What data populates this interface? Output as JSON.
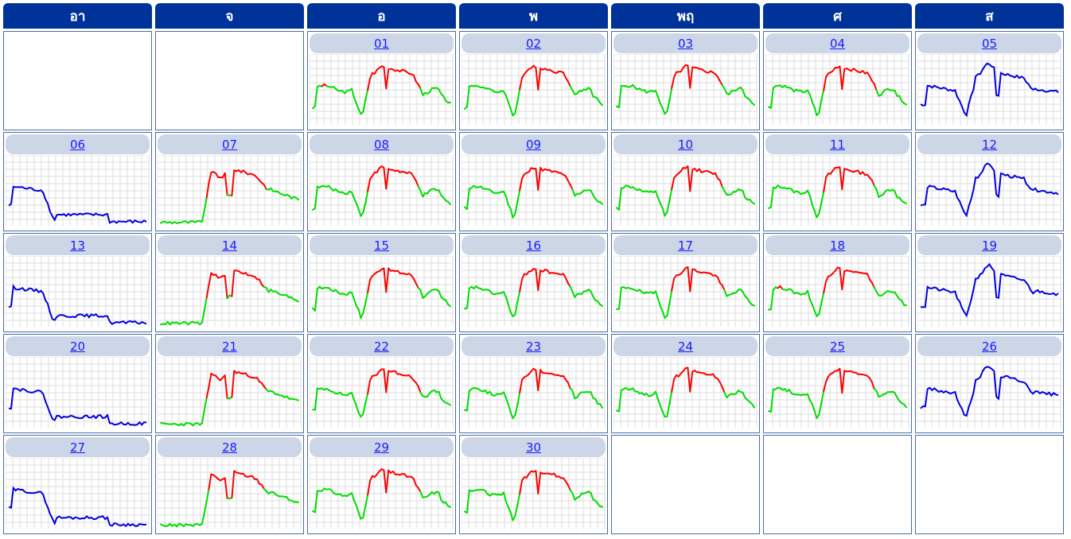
{
  "colors": {
    "header_bg": "#003399",
    "header_text": "#ffffff",
    "cell_border": "#4a6da7",
    "day_label_bg": "#ccd6e6",
    "day_link": "#1a1aff",
    "grid_line": "#dddddd",
    "weekday_high": "#ff0000",
    "weekday_normal": "#00dd00",
    "weekend_line": "#0000dd"
  },
  "weekdays": [
    "อา",
    "จ",
    "อ",
    "พ",
    "พฤ",
    "ศ",
    "ส"
  ],
  "days": [
    {
      "label": "01",
      "col": 2,
      "row": 0,
      "pattern": "weekday"
    },
    {
      "label": "02",
      "col": 3,
      "row": 0,
      "pattern": "weekday"
    },
    {
      "label": "03",
      "col": 4,
      "row": 0,
      "pattern": "weekday"
    },
    {
      "label": "04",
      "col": 5,
      "row": 0,
      "pattern": "weekday"
    },
    {
      "label": "05",
      "col": 6,
      "row": 0,
      "pattern": "saturday"
    },
    {
      "label": "06",
      "col": 0,
      "row": 1,
      "pattern": "sunday"
    },
    {
      "label": "07",
      "col": 1,
      "row": 1,
      "pattern": "monday"
    },
    {
      "label": "08",
      "col": 2,
      "row": 1,
      "pattern": "weekday"
    },
    {
      "label": "09",
      "col": 3,
      "row": 1,
      "pattern": "weekday"
    },
    {
      "label": "10",
      "col": 4,
      "row": 1,
      "pattern": "weekday"
    },
    {
      "label": "11",
      "col": 5,
      "row": 1,
      "pattern": "weekday"
    },
    {
      "label": "12",
      "col": 6,
      "row": 1,
      "pattern": "saturday"
    },
    {
      "label": "13",
      "col": 0,
      "row": 2,
      "pattern": "sunday"
    },
    {
      "label": "14",
      "col": 1,
      "row": 2,
      "pattern": "monday"
    },
    {
      "label": "15",
      "col": 2,
      "row": 2,
      "pattern": "weekday"
    },
    {
      "label": "16",
      "col": 3,
      "row": 2,
      "pattern": "weekday"
    },
    {
      "label": "17",
      "col": 4,
      "row": 2,
      "pattern": "weekday"
    },
    {
      "label": "18",
      "col": 5,
      "row": 2,
      "pattern": "weekday"
    },
    {
      "label": "19",
      "col": 6,
      "row": 2,
      "pattern": "saturday"
    },
    {
      "label": "20",
      "col": 0,
      "row": 3,
      "pattern": "sunday"
    },
    {
      "label": "21",
      "col": 1,
      "row": 3,
      "pattern": "monday"
    },
    {
      "label": "22",
      "col": 2,
      "row": 3,
      "pattern": "weekday"
    },
    {
      "label": "23",
      "col": 3,
      "row": 3,
      "pattern": "weekday"
    },
    {
      "label": "24",
      "col": 4,
      "row": 3,
      "pattern": "weekday"
    },
    {
      "label": "25",
      "col": 5,
      "row": 3,
      "pattern": "weekday"
    },
    {
      "label": "26",
      "col": 6,
      "row": 3,
      "pattern": "saturday"
    },
    {
      "label": "27",
      "col": 0,
      "row": 4,
      "pattern": "sunday"
    },
    {
      "label": "28",
      "col": 1,
      "row": 4,
      "pattern": "monday"
    },
    {
      "label": "29",
      "col": 2,
      "row": 4,
      "pattern": "weekday"
    },
    {
      "label": "30",
      "col": 3,
      "row": 4,
      "pattern": "weekday"
    }
  ],
  "empty_cells": [
    {
      "col": 0,
      "row": 0
    },
    {
      "col": 1,
      "row": 0
    },
    {
      "col": 4,
      "row": 4
    },
    {
      "col": 5,
      "row": 4
    },
    {
      "col": 6,
      "row": 4
    }
  ]
}
